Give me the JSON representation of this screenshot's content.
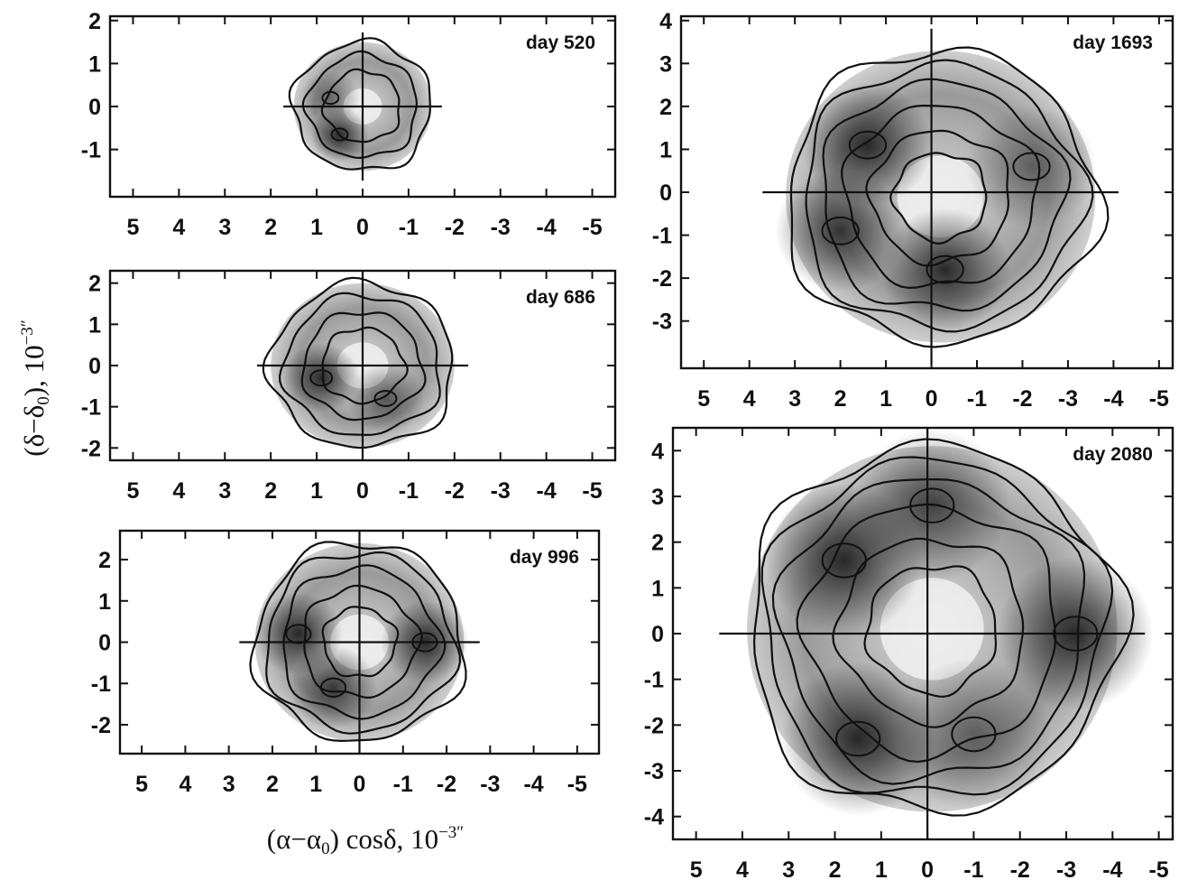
{
  "chart_data": {
    "type": "contour",
    "shared_xlabel": {
      "main": "(α−α",
      "sub": "0",
      "rest": ") cosδ, 10",
      "sup": "−3″"
    },
    "shared_ylabel": {
      "main": "(δ−δ",
      "sub": "0",
      "rest": "), 10",
      "sup": "−3″"
    },
    "panels": [
      {
        "label": "day 520",
        "xlim": [
          5.5,
          -5.5
        ],
        "ylim": [
          -2.1,
          2.1
        ],
        "xticks": [
          "5",
          "4",
          "3",
          "2",
          "1",
          "0",
          "-1",
          "-2",
          "-3",
          "-4",
          "-5"
        ],
        "yticks": [
          "2",
          "1",
          "0",
          "-1"
        ],
        "source": {
          "cx": 0.0,
          "cy": 0.0,
          "r": 1.5
        },
        "contour_levels": [
          1.0,
          0.8,
          0.55
        ],
        "peaks": [
          {
            "x": 0.5,
            "y": -0.65,
            "strength": 0.9
          },
          {
            "x": 0.7,
            "y": 0.2,
            "strength": 0.5
          }
        ]
      },
      {
        "label": "day 686",
        "xlim": [
          5.5,
          -5.5
        ],
        "ylim": [
          -2.3,
          2.3
        ],
        "xticks": [
          "5",
          "4",
          "3",
          "2",
          "1",
          "0",
          "-1",
          "-2",
          "-3",
          "-4",
          "-5"
        ],
        "yticks": [
          "2",
          "1",
          "0",
          "-1",
          "-2"
        ],
        "source": {
          "cx": 0.0,
          "cy": 0.0,
          "r": 2.0
        },
        "contour_levels": [
          1.0,
          0.85,
          0.65,
          0.45
        ],
        "peaks": [
          {
            "x": 0.9,
            "y": -0.3,
            "strength": 0.9
          },
          {
            "x": -0.5,
            "y": -0.8,
            "strength": 0.6
          }
        ]
      },
      {
        "label": "day 996",
        "xlim": [
          5.5,
          -5.5
        ],
        "ylim": [
          -2.7,
          2.7
        ],
        "xticks": [
          "5",
          "4",
          "3",
          "2",
          "1",
          "0",
          "-1",
          "-2",
          "-3",
          "-4",
          "-5"
        ],
        "yticks": [
          "2",
          "1",
          "0",
          "-1",
          "-2"
        ],
        "source": {
          "cx": 0.0,
          "cy": 0.0,
          "r": 2.4
        },
        "contour_levels": [
          1.0,
          0.9,
          0.75,
          0.55,
          0.35
        ],
        "peaks": [
          {
            "x": 1.4,
            "y": 0.2,
            "strength": 0.9
          },
          {
            "x": -1.5,
            "y": 0.0,
            "strength": 0.9
          },
          {
            "x": 0.6,
            "y": -1.1,
            "strength": 0.8
          }
        ]
      },
      {
        "label": "day 1693",
        "xlim": [
          5.5,
          -5.3
        ],
        "ylim": [
          -4.1,
          4.1
        ],
        "xticks": [
          "5",
          "4",
          "3",
          "2",
          "1",
          "0",
          "-1",
          "-2",
          "-3",
          "-4",
          "-5"
        ],
        "yticks": [
          "4",
          "3",
          "2",
          "1",
          "0",
          "-1",
          "-2",
          "-3"
        ],
        "source": {
          "cx": -0.2,
          "cy": -0.1,
          "r": 3.4
        },
        "contour_levels": [
          1.0,
          0.9,
          0.78,
          0.62,
          0.45,
          0.3
        ],
        "peaks": [
          {
            "x": 1.4,
            "y": 1.1,
            "strength": 0.9
          },
          {
            "x": 2.0,
            "y": -0.9,
            "strength": 0.8
          },
          {
            "x": -0.3,
            "y": -1.8,
            "strength": 0.9
          },
          {
            "x": -2.2,
            "y": 0.6,
            "strength": 0.5
          }
        ]
      },
      {
        "label": "day 2080",
        "xlim": [
          5.5,
          -5.3
        ],
        "ylim": [
          -4.5,
          4.5
        ],
        "xticks": [
          "5",
          "4",
          "3",
          "2",
          "1",
          "0",
          "-1",
          "-2",
          "-3",
          "-4",
          "-5"
        ],
        "yticks": [
          "4",
          "3",
          "2",
          "1",
          "0",
          "-1",
          "-2",
          "-3",
          "-4"
        ],
        "source": {
          "cx": -0.1,
          "cy": 0.1,
          "r": 4.0
        },
        "contour_levels": [
          1.0,
          0.92,
          0.82,
          0.68,
          0.5,
          0.35
        ],
        "peaks": [
          {
            "x": 1.8,
            "y": 1.6,
            "strength": 0.9
          },
          {
            "x": 1.5,
            "y": -2.3,
            "strength": 0.9
          },
          {
            "x": -3.2,
            "y": 0.0,
            "strength": 0.9
          },
          {
            "x": -0.1,
            "y": 2.8,
            "strength": 0.7
          },
          {
            "x": -1.0,
            "y": -2.2,
            "strength": 0.5
          }
        ]
      }
    ]
  }
}
